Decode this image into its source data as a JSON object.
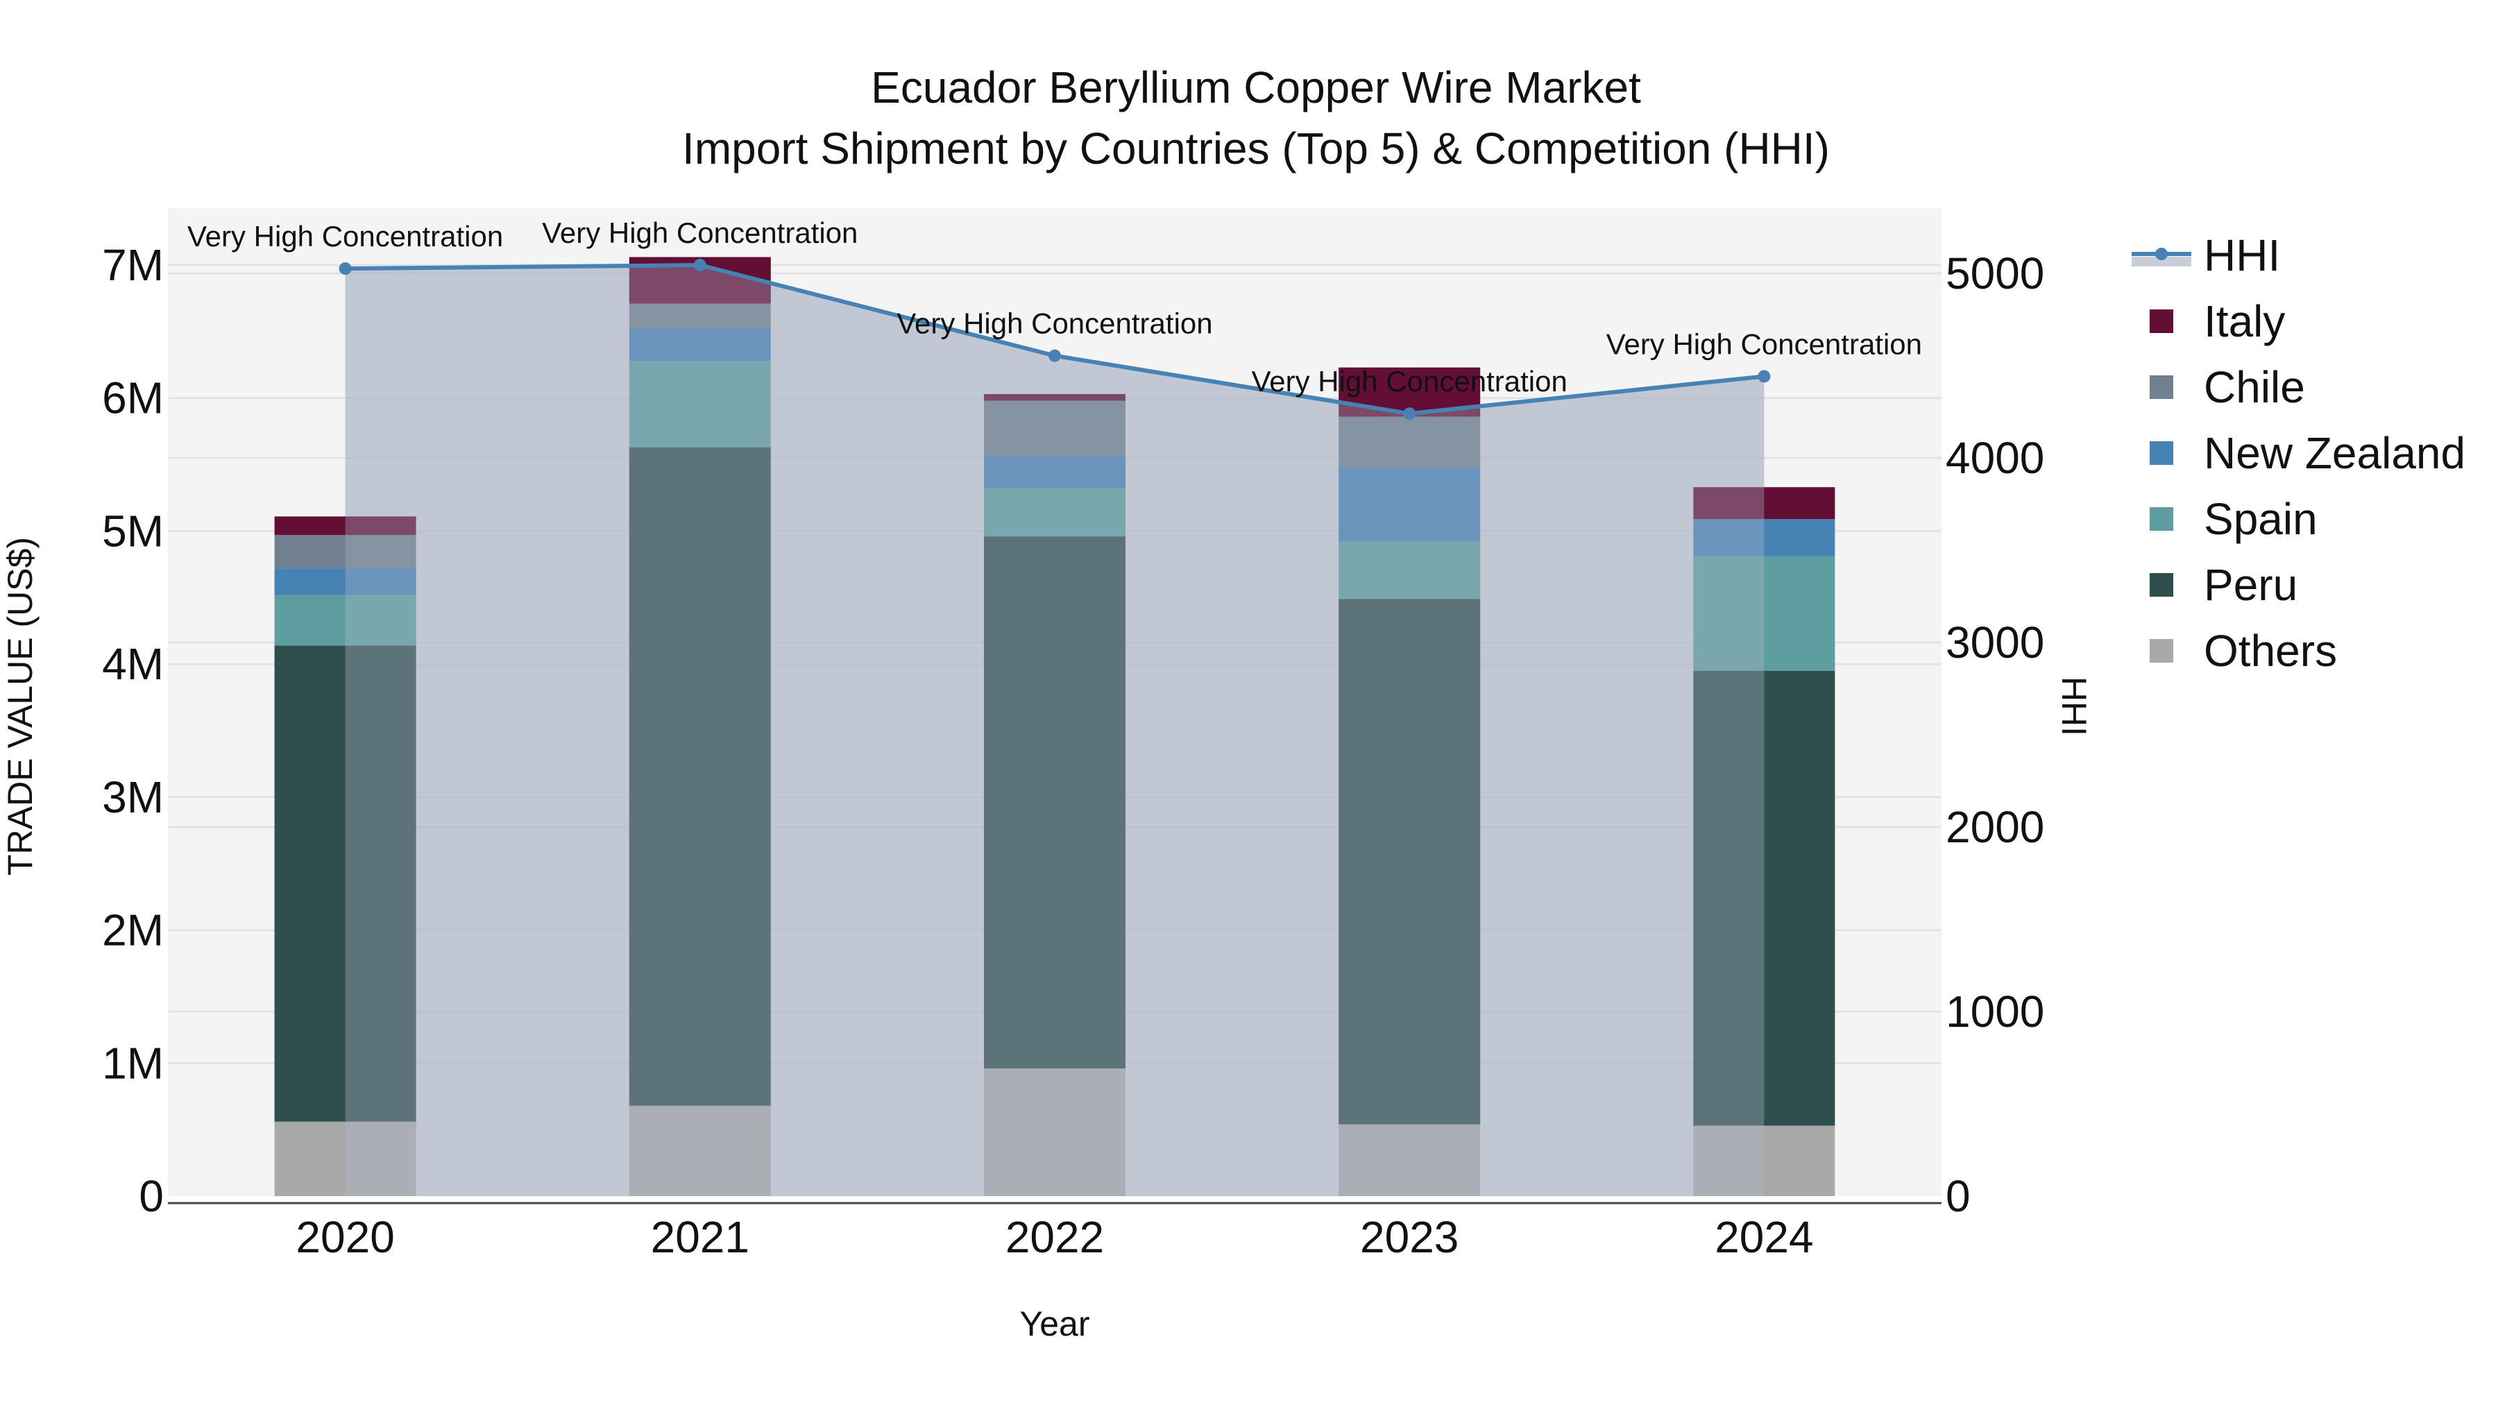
{
  "chart_data": {
    "type": "bar",
    "stacked": true,
    "title": "Ecuador Beryllium Copper Wire Market",
    "subtitle": "Import Shipment by Countries (Top 5) & Competition (HHI)",
    "xlabel": "Year",
    "ylabel": "TRADE VALUE (US$)",
    "y2label": "HHI",
    "categories": [
      "2020",
      "2021",
      "2022",
      "2023",
      "2024"
    ],
    "ylim": [
      0,
      7400000
    ],
    "y2lim": [
      0,
      5320
    ],
    "yticks": [
      {
        "v": 0,
        "label": "0"
      },
      {
        "v": 1000000,
        "label": "1M"
      },
      {
        "v": 2000000,
        "label": "2M"
      },
      {
        "v": 3000000,
        "label": "3M"
      },
      {
        "v": 4000000,
        "label": "4M"
      },
      {
        "v": 5000000,
        "label": "5M"
      },
      {
        "v": 6000000,
        "label": "6M"
      },
      {
        "v": 7000000,
        "label": "7M"
      }
    ],
    "y2ticks": [
      {
        "v": 0,
        "label": "0"
      },
      {
        "v": 1000,
        "label": "1000"
      },
      {
        "v": 2000,
        "label": "2000"
      },
      {
        "v": 3000,
        "label": "3000"
      },
      {
        "v": 4000,
        "label": "4000"
      },
      {
        "v": 5000,
        "label": "5000"
      }
    ],
    "grid": true,
    "legend_position": "right",
    "series": [
      {
        "name": "Others",
        "color": "#a9a9a9",
        "values": [
          560000,
          680000,
          960000,
          540000,
          530000
        ]
      },
      {
        "name": "Peru",
        "color": "#2f4f4f",
        "values": [
          3580000,
          4950000,
          4000000,
          3950000,
          3420000
        ]
      },
      {
        "name": "Spain",
        "color": "#5f9ea0",
        "values": [
          380000,
          650000,
          360000,
          430000,
          860000
        ]
      },
      {
        "name": "New Zealand",
        "color": "#4682b4",
        "values": [
          200000,
          240000,
          250000,
          560000,
          280000
        ]
      },
      {
        "name": "Chile",
        "color": "#708090",
        "values": [
          250000,
          190000,
          410000,
          380000,
          0
        ]
      },
      {
        "name": "Italy",
        "color": "#630f35",
        "values": [
          140000,
          350000,
          50000,
          370000,
          240000
        ]
      }
    ],
    "hhi": {
      "name": "HHI",
      "color": "#4682b4",
      "fill_color": "#b0b8c8",
      "values": [
        5026,
        5045,
        4554,
        4240,
        4442
      ],
      "annotations": [
        "Very High Concentration",
        "Very High Concentration",
        "Very High Concentration",
        "Very High Concentration",
        "Very High Concentration"
      ]
    },
    "legend": [
      "HHI",
      "Italy",
      "Chile",
      "New Zealand",
      "Spain",
      "Peru",
      "Others"
    ]
  }
}
